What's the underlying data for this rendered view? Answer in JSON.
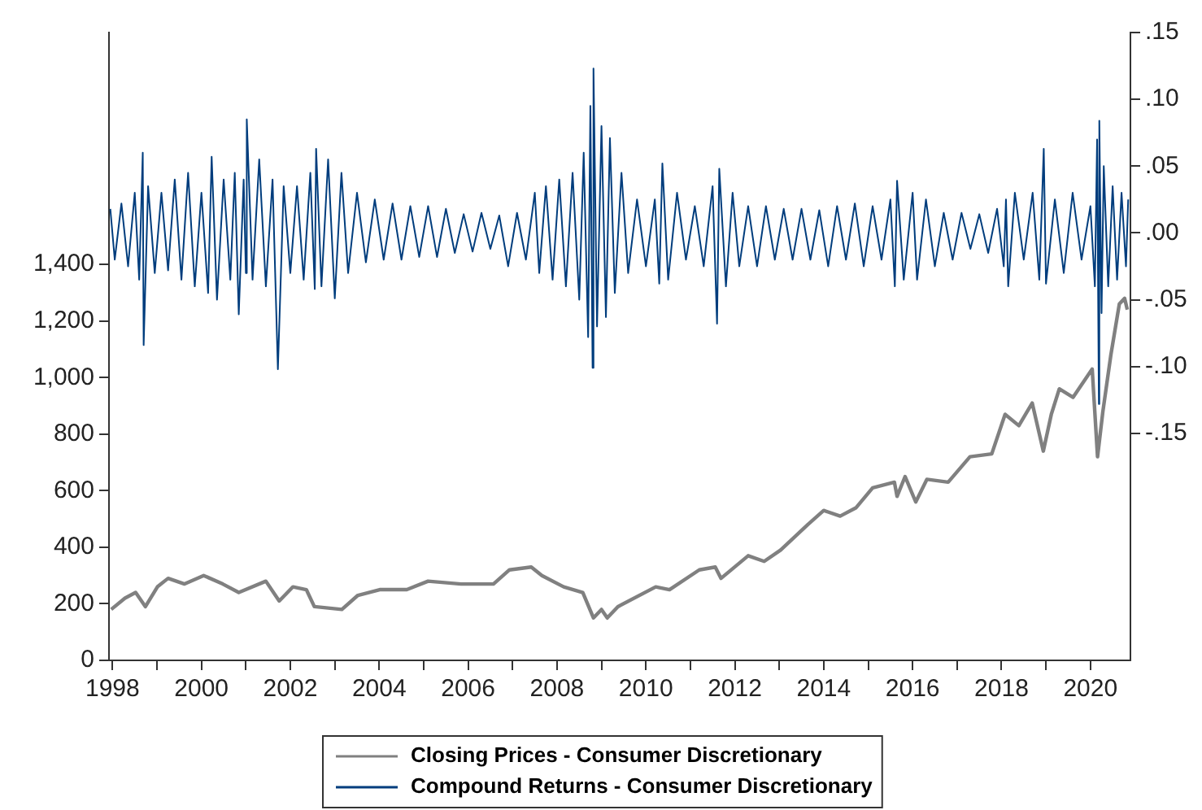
{
  "chart_data": {
    "type": "line",
    "legend": "bottom",
    "grid": false,
    "marker": "none",
    "line_style": "solid",
    "xlim": [
      1997.92,
      2020.9
    ],
    "xticks": [
      {
        "value": 1998,
        "label": "1998"
      },
      {
        "value": 1999,
        "label": null
      },
      {
        "value": 2000,
        "label": "2000"
      },
      {
        "value": 2001,
        "label": null
      },
      {
        "value": 2002,
        "label": "2002"
      },
      {
        "value": 2003,
        "label": null
      },
      {
        "value": 2004,
        "label": "2004"
      },
      {
        "value": 2005,
        "label": null
      },
      {
        "value": 2006,
        "label": "2006"
      },
      {
        "value": 2007,
        "label": null
      },
      {
        "value": 2008,
        "label": "2008"
      },
      {
        "value": 2009,
        "label": null
      },
      {
        "value": 2010,
        "label": "2010"
      },
      {
        "value": 2011,
        "label": null
      },
      {
        "value": 2012,
        "label": "2012"
      },
      {
        "value": 2013,
        "label": null
      },
      {
        "value": 2014,
        "label": "2014"
      },
      {
        "value": 2015,
        "label": null
      },
      {
        "value": 2016,
        "label": "2016"
      },
      {
        "value": 2017,
        "label": null
      },
      {
        "value": 2018,
        "label": "2018"
      },
      {
        "value": 2019,
        "label": null
      },
      {
        "value": 2020,
        "label": "2020"
      }
    ],
    "ylim": [
      0,
      2220
    ],
    "yticks": [
      0,
      200,
      400,
      600,
      800,
      {
        "value": 1000,
        "label": "1,000"
      },
      {
        "value": 1200,
        "label": "1,200"
      },
      {
        "value": 1400,
        "label": "1,400"
      }
    ],
    "y2lim": [
      -0.32,
      0.15
    ],
    "y2ticks": [
      {
        "value": 0.15,
        "label": ".15"
      },
      {
        "value": 0.1,
        "label": ".10"
      },
      {
        "value": 0.05,
        "label": ".05"
      },
      {
        "value": 0,
        "label": ".00"
      },
      {
        "value": -0.05,
        "label": "-.05"
      },
      {
        "value": -0.1,
        "label": "-.10"
      },
      {
        "value": -0.15,
        "label": "-.15"
      }
    ],
    "series": [
      {
        "name": "Closing Prices - Consumer Discretionary",
        "color": "#808080",
        "x": [
          1997.97,
          1998.28,
          1998.52,
          1998.74,
          1999.01,
          1999.25,
          1999.62,
          2000.05,
          2000.48,
          2000.84,
          2001.45,
          2001.75,
          2002.06,
          2002.36,
          2002.54,
          2003.16,
          2003.52,
          2004.01,
          2004.62,
          2005.1,
          2005.84,
          2006.57,
          2006.93,
          2007.42,
          2007.66,
          2008.15,
          2008.58,
          2008.82,
          2009.0,
          2009.13,
          2009.37,
          2010.22,
          2010.53,
          2011.2,
          2011.56,
          2011.69,
          2012.3,
          2012.66,
          2013.03,
          2013.64,
          2014.0,
          2014.37,
          2014.73,
          2015.1,
          2015.59,
          2015.65,
          2015.83,
          2016.07,
          2016.32,
          2016.8,
          2017.29,
          2017.78,
          2018.08,
          2018.39,
          2018.69,
          2018.94,
          2019.12,
          2019.3,
          2019.61,
          2020.04,
          2020.16,
          2020.28,
          2020.46,
          2020.65,
          2020.77,
          2020.83
        ],
        "values": [
          180,
          220,
          240,
          190,
          260,
          290,
          270,
          300,
          270,
          240,
          280,
          210,
          260,
          250,
          190,
          180,
          230,
          250,
          250,
          280,
          270,
          270,
          320,
          330,
          300,
          260,
          240,
          150,
          180,
          150,
          190,
          260,
          250,
          320,
          330,
          290,
          370,
          350,
          390,
          480,
          530,
          510,
          540,
          610,
          630,
          580,
          650,
          560,
          640,
          630,
          720,
          730,
          870,
          830,
          910,
          740,
          870,
          960,
          930,
          1030,
          720,
          880,
          1080,
          1260,
          1280,
          1240
        ]
      },
      {
        "name": "Compound Returns - Consumer Discretionary",
        "color": "#003d7d",
        "axis": "y2",
        "x": [
          1997.95,
          1998.05,
          1998.2,
          1998.35,
          1998.5,
          1998.6,
          1998.68,
          1998.7,
          1998.8,
          1998.95,
          1999.1,
          1999.25,
          1999.4,
          1999.55,
          1999.7,
          1999.85,
          2000.0,
          2000.15,
          2000.23,
          2000.35,
          2000.5,
          2000.65,
          2000.75,
          2000.84,
          2000.95,
          2001.0,
          2001.02,
          2001.15,
          2001.3,
          2001.45,
          2001.6,
          2001.72,
          2001.85,
          2002.0,
          2002.15,
          2002.3,
          2002.45,
          2002.55,
          2002.58,
          2002.7,
          2002.85,
          2003.0,
          2003.15,
          2003.3,
          2003.5,
          2003.7,
          2003.9,
          2004.1,
          2004.3,
          2004.5,
          2004.7,
          2004.9,
          2005.1,
          2005.3,
          2005.5,
          2005.7,
          2005.9,
          2006.1,
          2006.3,
          2006.5,
          2006.7,
          2006.9,
          2007.1,
          2007.3,
          2007.5,
          2007.6,
          2007.75,
          2007.9,
          2008.05,
          2008.2,
          2008.35,
          2008.5,
          2008.6,
          2008.7,
          2008.75,
          2008.8,
          2008.82,
          2008.9,
          2009.0,
          2009.1,
          2009.19,
          2009.3,
          2009.45,
          2009.6,
          2009.8,
          2010.0,
          2010.2,
          2010.3,
          2010.37,
          2010.5,
          2010.7,
          2010.9,
          2011.1,
          2011.3,
          2011.5,
          2011.6,
          2011.65,
          2011.8,
          2011.95,
          2012.1,
          2012.3,
          2012.5,
          2012.7,
          2012.9,
          2013.1,
          2013.3,
          2013.5,
          2013.7,
          2013.9,
          2014.1,
          2014.3,
          2014.5,
          2014.7,
          2014.9,
          2015.1,
          2015.3,
          2015.5,
          2015.6,
          2015.65,
          2015.8,
          2016.0,
          2016.1,
          2016.3,
          2016.5,
          2016.7,
          2016.9,
          2017.1,
          2017.3,
          2017.5,
          2017.7,
          2017.9,
          2018.05,
          2018.1,
          2018.15,
          2018.3,
          2018.5,
          2018.7,
          2018.85,
          2018.95,
          2019.0,
          2019.2,
          2019.4,
          2019.6,
          2019.8,
          2020.0,
          2020.1,
          2020.15,
          2020.19,
          2020.2,
          2020.25,
          2020.3,
          2020.4,
          2020.5,
          2020.6,
          2020.7,
          2020.8,
          2020.85
        ],
        "values": [
          0.018,
          -0.02,
          0.022,
          -0.025,
          0.03,
          -0.035,
          0.06,
          -0.084,
          0.035,
          -0.03,
          0.03,
          -0.028,
          0.04,
          -0.035,
          0.045,
          -0.04,
          0.03,
          -0.045,
          0.057,
          -0.05,
          0.04,
          -0.035,
          0.045,
          -0.061,
          0.04,
          -0.03,
          0.085,
          -0.035,
          0.055,
          -0.04,
          0.04,
          -0.102,
          0.035,
          -0.03,
          0.035,
          -0.035,
          0.045,
          -0.042,
          0.063,
          -0.04,
          0.055,
          -0.049,
          0.045,
          -0.03,
          0.03,
          -0.022,
          0.025,
          -0.02,
          0.022,
          -0.02,
          0.02,
          -0.018,
          0.02,
          -0.018,
          0.018,
          -0.015,
          0.014,
          -0.014,
          0.015,
          -0.012,
          0.013,
          -0.025,
          0.015,
          -0.02,
          0.03,
          -0.03,
          0.035,
          -0.035,
          0.04,
          -0.04,
          0.045,
          -0.05,
          0.06,
          -0.078,
          0.095,
          -0.101,
          0.123,
          -0.07,
          0.08,
          -0.063,
          0.071,
          -0.045,
          0.045,
          -0.03,
          0.025,
          -0.025,
          0.025,
          -0.038,
          0.052,
          -0.035,
          0.03,
          -0.02,
          0.02,
          -0.025,
          0.035,
          -0.068,
          0.048,
          -0.04,
          0.03,
          -0.025,
          0.02,
          -0.025,
          0.02,
          -0.02,
          0.018,
          -0.02,
          0.018,
          -0.02,
          0.017,
          -0.025,
          0.02,
          -0.02,
          0.022,
          -0.025,
          0.02,
          -0.02,
          0.025,
          -0.04,
          0.039,
          -0.035,
          0.03,
          -0.035,
          0.025,
          -0.025,
          0.015,
          -0.02,
          0.015,
          -0.012,
          0.014,
          -0.015,
          0.018,
          -0.025,
          0.025,
          -0.04,
          0.03,
          -0.02,
          0.03,
          -0.035,
          0.063,
          -0.038,
          0.025,
          -0.03,
          0.03,
          -0.02,
          0.02,
          -0.04,
          0.07,
          -0.128,
          0.084,
          -0.06,
          0.05,
          -0.04,
          0.035,
          -0.035,
          0.03,
          -0.025,
          0.025
        ]
      }
    ]
  }
}
